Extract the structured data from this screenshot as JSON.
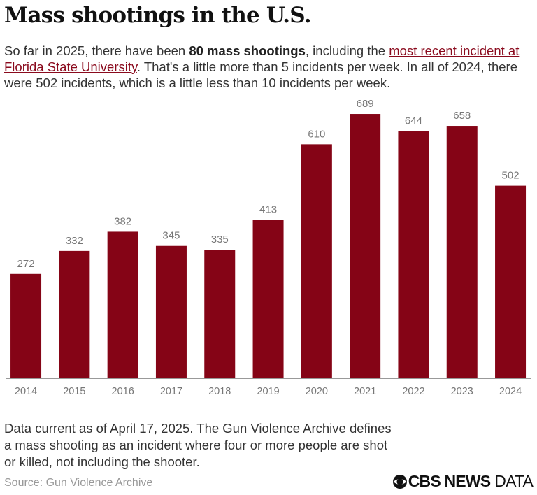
{
  "title": "Mass shootings in the U.S.",
  "subtitle": {
    "part1": "So far in 2025, there have been ",
    "bold": "80 mass shootings",
    "part2": ", including the ",
    "link": "most recent incident at Florida State University",
    "part3": ". That's a little more than 5 incidents per week. In all of 2024, there were 502 incidents, which is a little less than 10 incidents per week."
  },
  "note": "Data current as of April 17, 2025. The Gun Violence Archive defines a mass shooting as an incident where four or more people are shot or killed, not including the shooter.",
  "source": "Source: Gun Violence Archive",
  "logo": {
    "brand": "CBS NEWS",
    "suffix": "DATA"
  },
  "colors": {
    "bar": "#850416",
    "link": "#8a0a1d",
    "label": "#777777"
  },
  "chart_data": {
    "type": "bar",
    "categories": [
      "2014",
      "2015",
      "2016",
      "2017",
      "2018",
      "2019",
      "2020",
      "2021",
      "2022",
      "2023",
      "2024"
    ],
    "values": [
      272,
      332,
      382,
      345,
      335,
      413,
      610,
      689,
      644,
      658,
      502
    ],
    "title": "Mass shootings in the U.S.",
    "xlabel": "",
    "ylabel": "",
    "ylim": [
      0,
      700
    ],
    "grid": false,
    "data_labels": true
  }
}
